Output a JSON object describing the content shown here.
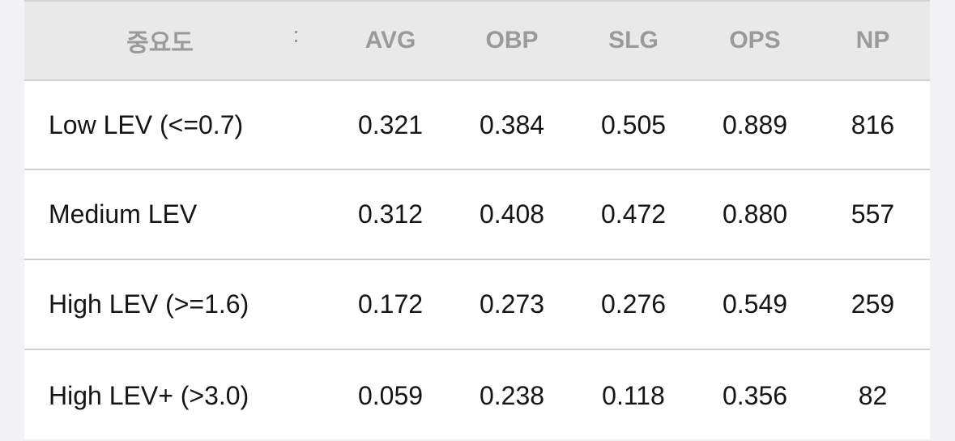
{
  "table": {
    "header": [
      "중요도",
      "AVG",
      "OBP",
      "SLG",
      "OPS",
      "NP"
    ],
    "rows": [
      [
        "Low LEV (<=0.7)",
        "0.321",
        "0.384",
        "0.505",
        "0.889",
        "816"
      ],
      [
        "Medium LEV",
        "0.312",
        "0.408",
        "0.472",
        "0.880",
        "557"
      ],
      [
        "High LEV (>=1.6)",
        "0.172",
        "0.273",
        "0.276",
        "0.549",
        "259"
      ],
      [
        "High LEV+ (>3.0)",
        "0.059",
        "0.238",
        "0.118",
        "0.356",
        "82"
      ]
    ]
  }
}
